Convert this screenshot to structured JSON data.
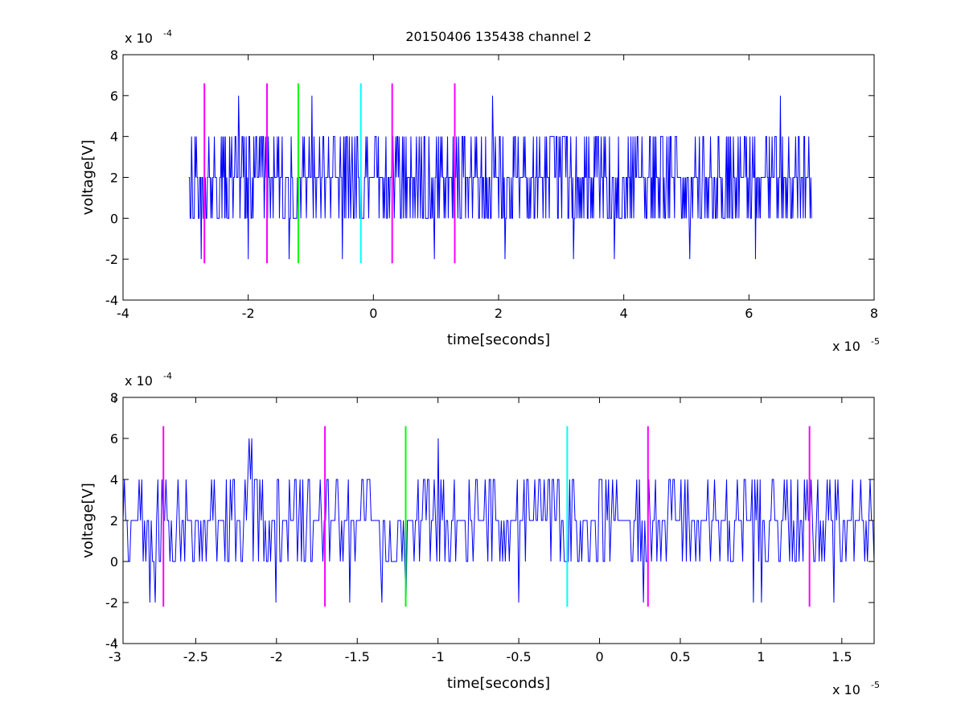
{
  "title": "20150406 135438 channel 2",
  "colors": {
    "signal": "#0000ff",
    "marker_magenta": "#ff00ff",
    "marker_green": "#00ff00",
    "marker_cyan": "#00ffff"
  },
  "chart_data": [
    {
      "type": "line",
      "title": "20150406 135438 channel 2",
      "xlabel": "time[seconds]",
      "ylabel": "voltage[V]",
      "x_exponent": "x 10",
      "x_exponent_power": "-5",
      "y_exponent": "x 10",
      "y_exponent_power": "-4",
      "xlim": [
        -4,
        8
      ],
      "ylim": [
        -4,
        8
      ],
      "xticks": [
        -4,
        -2,
        0,
        2,
        4,
        6,
        8
      ],
      "xtick_labels": [
        "-4",
        "-2",
        "0",
        "2",
        "4",
        "6",
        "8"
      ],
      "yticks": [
        -4,
        -2,
        0,
        2,
        4,
        6,
        8
      ],
      "ytick_labels": [
        "-4",
        "-2",
        "0",
        "2",
        "4",
        "6",
        "8"
      ],
      "grid": false,
      "signal_t_range": [
        -2.95,
        7.0
      ],
      "spikes_high": [
        [
          -2.15,
          6
        ],
        [
          -0.98,
          6
        ],
        [
          1.9,
          6
        ],
        [
          6.5,
          6
        ]
      ],
      "spikes_low": [
        [
          -2.75,
          -2
        ],
        [
          -2.0,
          -2
        ],
        [
          -1.35,
          -2
        ],
        [
          -0.5,
          -2
        ],
        [
          0.98,
          -2
        ],
        [
          2.1,
          -2
        ],
        [
          3.2,
          -2
        ],
        [
          3.85,
          -2
        ],
        [
          5.05,
          -2
        ],
        [
          6.1,
          -2
        ]
      ],
      "markers": [
        {
          "x": -2.7,
          "color": "magenta",
          "y_range": [
            -2.2,
            6.6
          ]
        },
        {
          "x": -1.7,
          "color": "magenta",
          "y_range": [
            -2.2,
            6.6
          ]
        },
        {
          "x": -1.2,
          "color": "green",
          "y_range": [
            -2.2,
            6.6
          ]
        },
        {
          "x": -0.2,
          "color": "cyan",
          "y_range": [
            -2.2,
            6.6
          ]
        },
        {
          "x": 0.3,
          "color": "magenta",
          "y_range": [
            -2.2,
            6.6
          ]
        },
        {
          "x": 1.3,
          "color": "magenta",
          "y_range": [
            -2.2,
            6.6
          ]
        }
      ]
    },
    {
      "type": "line",
      "xlabel": "time[seconds]",
      "ylabel": "voltage[V]",
      "x_exponent": "x 10",
      "x_exponent_power": "-5",
      "y_exponent": "x 10",
      "y_exponent_power": "-4",
      "xlim": [
        -2.95,
        1.7
      ],
      "ylim": [
        -4,
        8
      ],
      "xticks": [
        -3,
        -2.5,
        -2,
        -1.5,
        -1,
        -0.5,
        0,
        0.5,
        1,
        1.5
      ],
      "xtick_labels": [
        "-3",
        "-2.5",
        "-2",
        "-1.5",
        "-1",
        "-0.5",
        "0",
        "0.5",
        "1",
        "1.5"
      ],
      "yticks": [
        -4,
        -2,
        0,
        2,
        4,
        6,
        8
      ],
      "ytick_labels": [
        "-4",
        "-2",
        "0",
        "2",
        "4",
        "6",
        "8"
      ],
      "grid": false,
      "signal_t_range": [
        -2.95,
        1.7
      ],
      "spikes_high": [
        [
          -2.17,
          6
        ],
        [
          -2.15,
          6
        ],
        [
          -1.0,
          6
        ]
      ],
      "spikes_low": [
        [
          -2.78,
          -2
        ],
        [
          -2.75,
          -2
        ],
        [
          -2.0,
          -2
        ],
        [
          -1.55,
          -2
        ],
        [
          -1.35,
          -2
        ],
        [
          -1.2,
          -2
        ],
        [
          -0.5,
          -2
        ],
        [
          0.27,
          -2
        ],
        [
          0.95,
          -2
        ],
        [
          1.0,
          -2
        ],
        [
          1.45,
          -2
        ]
      ],
      "markers": [
        {
          "x": -2.7,
          "color": "magenta",
          "y_range": [
            -2.2,
            6.6
          ]
        },
        {
          "x": -1.7,
          "color": "magenta",
          "y_range": [
            -2.2,
            6.6
          ]
        },
        {
          "x": -1.2,
          "color": "green",
          "y_range": [
            -2.2,
            6.6
          ]
        },
        {
          "x": -0.2,
          "color": "cyan",
          "y_range": [
            -2.2,
            6.6
          ]
        },
        {
          "x": 0.3,
          "color": "magenta",
          "y_range": [
            -2.2,
            6.6
          ]
        },
        {
          "x": 1.3,
          "color": "magenta",
          "y_range": [
            -2.2,
            6.6
          ]
        }
      ]
    }
  ]
}
